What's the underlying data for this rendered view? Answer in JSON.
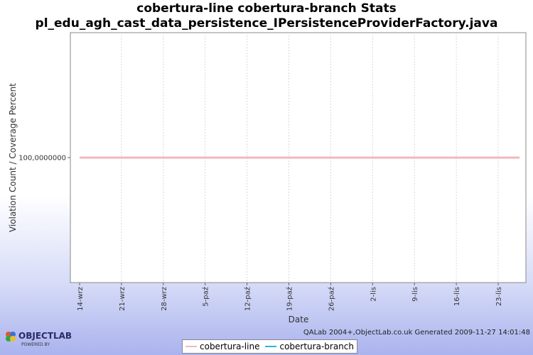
{
  "chart_data": {
    "type": "line",
    "title_line1": "cobertura-line cobertura-branch  Stats",
    "title_line2": "pl_edu_agh_cast_data_persistence_IPersistenceProviderFactory.java",
    "xlabel": "Date",
    "ylabel": "Violation Count / Coverage Percent",
    "x_ticks": [
      "14-wrz",
      "21-wrz",
      "28-wrz",
      "5-paź",
      "12-paź",
      "19-paź",
      "26-paź",
      "2-lis",
      "9-lis",
      "16-lis",
      "23-lis"
    ],
    "y_ticks": [
      "100,0000000"
    ],
    "x": [
      "14-wrz",
      "27-lis"
    ],
    "series": [
      {
        "name": "cobertura-line",
        "color": "#f0b8bd",
        "values": [
          100,
          100
        ]
      },
      {
        "name": "cobertura-branch",
        "color": "#29b6d6",
        "values": [
          100,
          100
        ]
      }
    ],
    "ylim": [
      99,
      101
    ],
    "grid": true,
    "legend_position": "bottom"
  },
  "footer": "QALab 2004+,ObjectLab.co.uk Generated 2009-11-27 14:01:48",
  "logo": {
    "text": "OBJECTLAB",
    "subtext": "POWERED BY"
  }
}
